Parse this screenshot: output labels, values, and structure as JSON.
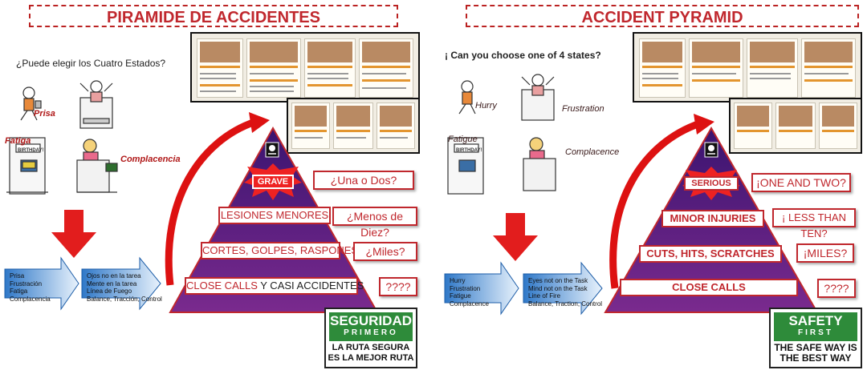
{
  "left": {
    "title": "PIRAMIDE  DE ACCIDENTES",
    "question": "¿Puede elegir los Cuatro Estados?",
    "states": {
      "hurry": "Prisa",
      "fatigue": "Fatiga",
      "complacency": "Complacencia"
    },
    "states_box": [
      "Prisa",
      "Frustración",
      "Fatiga",
      "Complacencia"
    ],
    "errors_box": [
      "Ojos no en la tarea",
      "Mente en la tarea",
      "Línea de Fuego",
      "Balance, Tracción, Control"
    ],
    "levels": {
      "grave": "GRAVE",
      "minor": "LESIONES MENORES",
      "cuts": "CORTES, GOLPES, RASPONES",
      "close_calls_a": "CLOSE CALLS",
      "close_calls_b": " Y CASI ACCIDENTES"
    },
    "counts": [
      "¿Una o Dos?",
      "¿Menos de Diez?",
      "¿Miles?",
      "????"
    ],
    "sign": {
      "line1": "SEGURIDAD",
      "line2": "PRIMERO",
      "motto1": "LA RUTA SEGURA",
      "motto2": "ES LA MEJOR RUTA"
    },
    "poster_text": "BIRTHDAY!"
  },
  "right": {
    "title": "ACCIDENT PYRAMID",
    "question": "¡ Can you choose one of 4 states?",
    "states": {
      "hurry": "Hurry",
      "frustration": "Frustration",
      "fatigue": "Fatigue",
      "complacency": "Complacence"
    },
    "states_box": [
      "Hurry",
      "Frustration",
      "Fatigue",
      "Complacence"
    ],
    "errors_box": [
      "Eyes not on the Task",
      "Mind not on the Task",
      "Line of Fire",
      "Balance, Traction, Control"
    ],
    "levels": {
      "serious": "SERIOUS",
      "minor": "MINOR INJURIES",
      "cuts": "CUTS, HITS, SCRATCHES",
      "close_calls": "CLOSE CALLS"
    },
    "counts": [
      "¡ONE AND TWO?",
      "¡ LESS THAN TEN?",
      "¡MILES?",
      "????"
    ],
    "sign": {
      "line1": "SAFETY",
      "line2": "FIRST",
      "motto1": "THE SAFE WAY IS",
      "motto2": "THE BEST WAY"
    },
    "poster_text": "BIRTHDAY!"
  },
  "colors": {
    "red": "#c0272d",
    "purple": "#5b1d7a",
    "green": "#2e8b3a",
    "arrow_blue": "#4a90d9"
  }
}
